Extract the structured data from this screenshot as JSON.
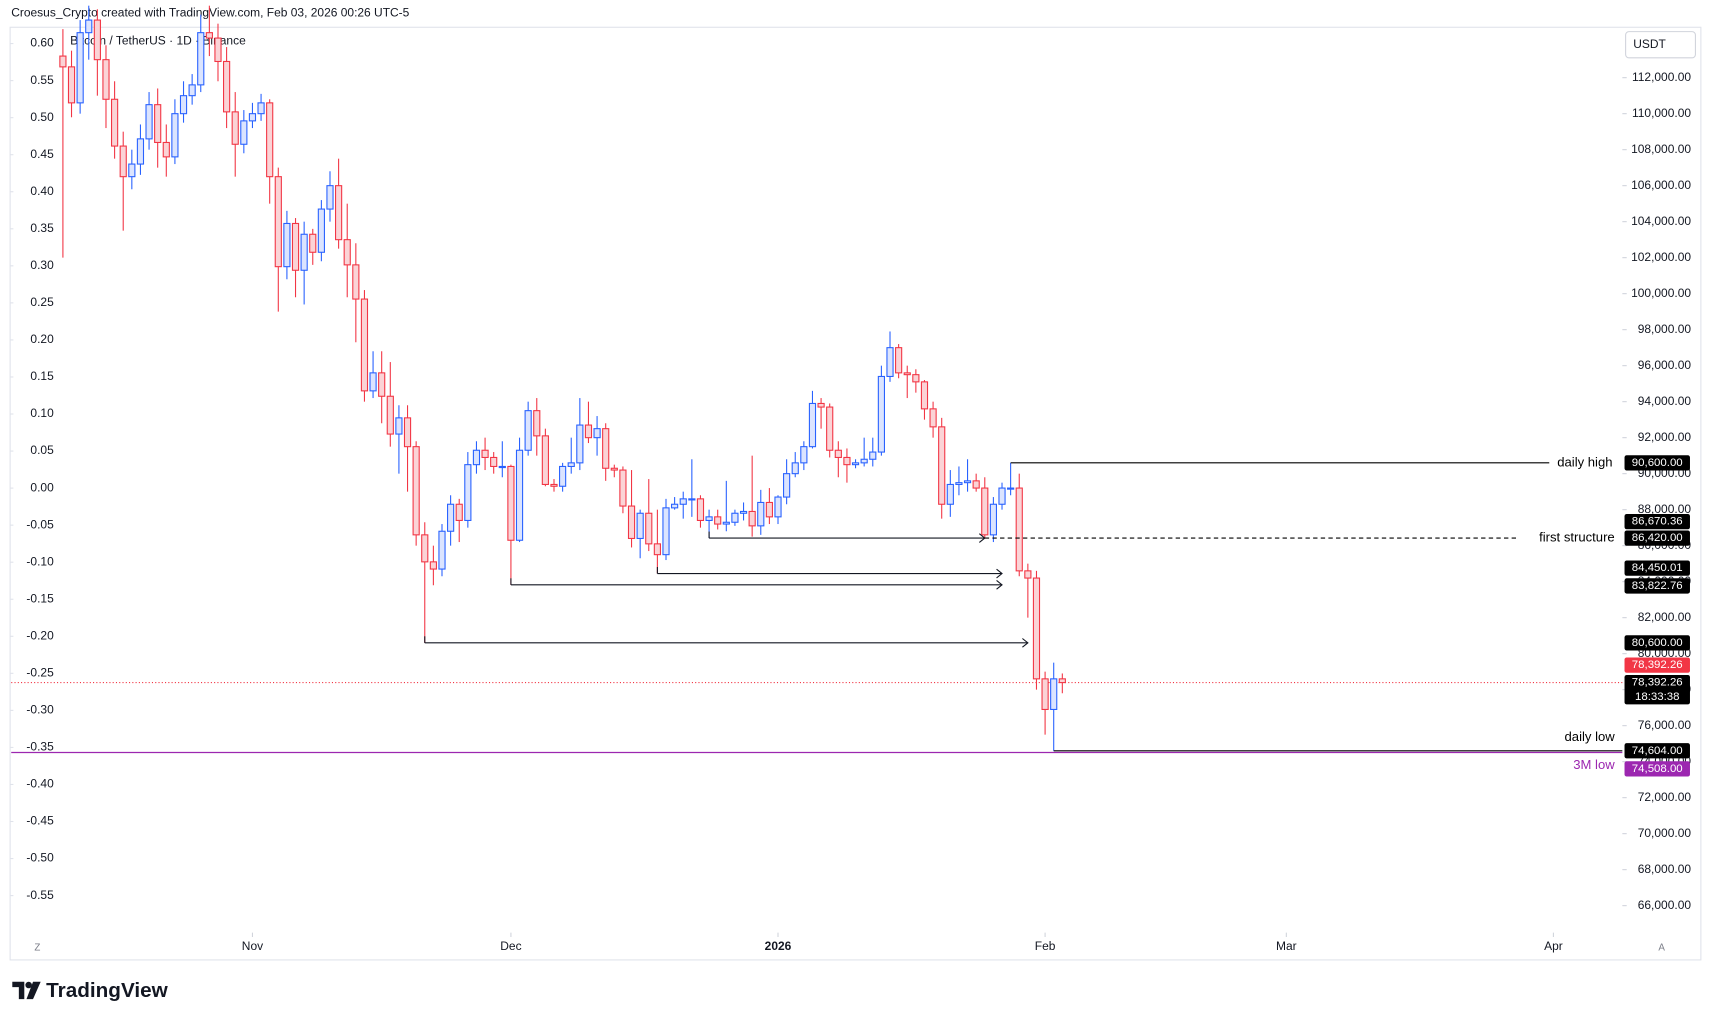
{
  "chart_data": {
    "type": "candlestick",
    "credit": "Croesus_Crypto created with TradingView.com, Feb 03, 2026 00:26 UTC-5",
    "title": "Bitcoin / TetherUS · 1D · Binance",
    "currency": "USDT",
    "brand": "TradingView",
    "corner_labels": [
      "Z",
      "A"
    ],
    "up_color": "#2962ff",
    "down_color": "#f23645",
    "xlim": [
      -6,
      181
    ],
    "xticks": [
      {
        "value": 22,
        "label": "Nov"
      },
      {
        "value": 52,
        "label": "Dec"
      },
      {
        "value": 83,
        "label": "2026"
      },
      {
        "value": 114,
        "label": "Feb"
      },
      {
        "value": 142,
        "label": "Mar"
      },
      {
        "value": 173,
        "label": "Apr"
      }
    ],
    "ylim": [
      64500,
      114800
    ],
    "yticks": [
      {
        "value": 66000,
        "label": "66,000.00"
      },
      {
        "value": 68000,
        "label": "68,000.00"
      },
      {
        "value": 70000,
        "label": "70,000.00"
      },
      {
        "value": 72000,
        "label": "72,000.00"
      },
      {
        "value": 74000,
        "label": "74,000.00"
      },
      {
        "value": 76000,
        "label": "76,000.00"
      },
      {
        "value": 78000,
        "label": "78,000.00"
      },
      {
        "value": 80000,
        "label": "80,000.00"
      },
      {
        "value": 82000,
        "label": "82,000.00"
      },
      {
        "value": 84000,
        "label": "84,000.00"
      },
      {
        "value": 86000,
        "label": "86,000.00"
      },
      {
        "value": 88000,
        "label": "88,000.00"
      },
      {
        "value": 90000,
        "label": "90,000.00"
      },
      {
        "value": 92000,
        "label": "92,000.00"
      },
      {
        "value": 94000,
        "label": "94,000.00"
      },
      {
        "value": 96000,
        "label": "96,000.00"
      },
      {
        "value": 98000,
        "label": "98,000.00"
      },
      {
        "value": 100000,
        "label": "100,000.00"
      },
      {
        "value": 102000,
        "label": "102,000.00"
      },
      {
        "value": 104000,
        "label": "104,000.00"
      },
      {
        "value": 106000,
        "label": "106,000.00"
      },
      {
        "value": 108000,
        "label": "108,000.00"
      },
      {
        "value": 110000,
        "label": "110,000.00"
      },
      {
        "value": 112000,
        "label": "112,000.00"
      }
    ],
    "y2lim": [
      -0.6,
      0.622
    ],
    "y2ticks": [
      {
        "value": 0.6,
        "label": "0.60"
      },
      {
        "value": 0.55,
        "label": "0.55"
      },
      {
        "value": 0.5,
        "label": "0.50"
      },
      {
        "value": 0.45,
        "label": "0.45"
      },
      {
        "value": 0.4,
        "label": "0.40"
      },
      {
        "value": 0.35,
        "label": "0.35"
      },
      {
        "value": 0.3,
        "label": "0.30"
      },
      {
        "value": 0.25,
        "label": "0.25"
      },
      {
        "value": 0.2,
        "label": "0.20"
      },
      {
        "value": 0.15,
        "label": "0.15"
      },
      {
        "value": 0.1,
        "label": "0.10"
      },
      {
        "value": 0.05,
        "label": "0.05"
      },
      {
        "value": 0,
        "label": "0.00"
      },
      {
        "value": -0.05,
        "label": "-0.05"
      },
      {
        "value": -0.1,
        "label": "-0.10"
      },
      {
        "value": -0.15,
        "label": "-0.15"
      },
      {
        "value": -0.2,
        "label": "-0.20"
      },
      {
        "value": -0.25,
        "label": "-0.25"
      },
      {
        "value": -0.3,
        "label": "-0.30"
      },
      {
        "value": -0.35,
        "label": "-0.35"
      },
      {
        "value": -0.4,
        "label": "-0.40"
      },
      {
        "value": -0.45,
        "label": "-0.45"
      },
      {
        "value": -0.5,
        "label": "-0.50"
      },
      {
        "value": -0.55,
        "label": "-0.55"
      }
    ],
    "open": [
      113200,
      112600,
      110600,
      114500,
      115200,
      113000,
      110800,
      108200,
      106500,
      107200,
      108600,
      110500,
      108400,
      107600,
      110000,
      111000,
      111600,
      114500,
      114200,
      112900,
      110100,
      108300,
      109600,
      110000,
      110600,
      106500,
      101500,
      103900,
      101300,
      103300,
      102300,
      104700,
      106000,
      103000,
      101600,
      99700,
      94600,
      95600,
      94300,
      92200,
      93100,
      91500,
      86600,
      85100,
      84700,
      86800,
      88300,
      87400,
      90500,
      91300,
      90900,
      90400,
      90400,
      86300,
      91300,
      93500,
      92100,
      89400,
      89300,
      90400,
      90600,
      92700,
      92000,
      92500,
      90300,
      90200,
      88200,
      86400,
      87800,
      86100,
      85500,
      88100,
      88300,
      88600,
      88600,
      87400,
      87600,
      87200,
      87300,
      87800,
      87900,
      87100,
      88400,
      87600,
      88700,
      90000,
      90600,
      91500,
      93900,
      93700,
      91300,
      90900,
      90500,
      90600,
      90800,
      91200,
      95400,
      97000,
      95600,
      95500,
      95100,
      93600,
      92600,
      88300,
      89400,
      89500,
      89600,
      89200,
      86600,
      88300,
      89200,
      89200,
      84600,
      84200,
      78600,
      76900,
      78600
    ],
    "high": [
      114700,
      113500,
      115200,
      116000,
      115800,
      113800,
      111800,
      109000,
      108000,
      109400,
      111200,
      111400,
      109400,
      110800,
      111800,
      112200,
      115500,
      116000,
      115000,
      113700,
      111200,
      110200,
      110600,
      111100,
      110800,
      107000,
      104600,
      104200,
      104000,
      103600,
      105200,
      106800,
      107500,
      105000,
      102800,
      100200,
      96800,
      96800,
      96200,
      93800,
      93800,
      91800,
      87300,
      86000,
      87200,
      88800,
      88600,
      91200,
      91800,
      92000,
      91200,
      91800,
      90500,
      92000,
      94000,
      94200,
      92500,
      89700,
      90600,
      92000,
      94200,
      94000,
      93200,
      92800,
      90500,
      90400,
      90200,
      88000,
      89700,
      88000,
      88600,
      88700,
      89000,
      90800,
      88800,
      88000,
      88000,
      89600,
      88000,
      88400,
      91000,
      89100,
      89200,
      88800,
      90800,
      91200,
      91800,
      94600,
      94200,
      93900,
      91800,
      91400,
      90800,
      92000,
      92000,
      96000,
      97900,
      97200,
      96000,
      95800,
      95200,
      94000,
      93100,
      90200,
      90400,
      90800,
      90000,
      89800,
      88700,
      89500,
      90600,
      90000,
      85000,
      84600,
      79000,
      79500,
      78900
    ],
    "low": [
      102000,
      109800,
      110000,
      113000,
      111000,
      109200,
      107500,
      103500,
      105800,
      106600,
      108000,
      107000,
      106500,
      107200,
      109500,
      110500,
      111200,
      113200,
      111800,
      109200,
      106500,
      107800,
      109200,
      109600,
      105000,
      99000,
      100800,
      99800,
      99400,
      101600,
      101800,
      104000,
      102500,
      99800,
      97300,
      94000,
      94200,
      92800,
      91500,
      90000,
      89000,
      86000,
      80600,
      83800,
      84300,
      86000,
      86200,
      87000,
      90000,
      90200,
      90000,
      89800,
      83822.76,
      86200,
      91000,
      91000,
      89300,
      89000,
      89000,
      90000,
      90200,
      91700,
      91000,
      89600,
      89800,
      87800,
      85900,
      85300,
      85700,
      84450.01,
      85200,
      88000,
      87500,
      87600,
      87000,
      86420,
      86900,
      86800,
      87100,
      87400,
      86500,
      86600,
      87200,
      87200,
      88300,
      89800,
      90200,
      91400,
      92500,
      90900,
      89800,
      89500,
      90300,
      90400,
      90400,
      91000,
      95100,
      95300,
      94200,
      94500,
      93000,
      92000,
      87500,
      87600,
      88800,
      89000,
      89000,
      86400,
      86200,
      88000,
      88800,
      84300,
      82000,
      78000,
      75500,
      74604,
      77800
    ],
    "close": [
      112600,
      110600,
      114500,
      115200,
      113000,
      110800,
      108200,
      106500,
      107200,
      108600,
      110500,
      108400,
      107600,
      110000,
      111000,
      111600,
      114500,
      114200,
      112900,
      110100,
      108300,
      109600,
      110000,
      110600,
      106500,
      101500,
      103900,
      101300,
      103300,
      102300,
      104700,
      106000,
      103000,
      101600,
      99700,
      94600,
      95600,
      94300,
      92200,
      93100,
      91500,
      86600,
      85100,
      84700,
      86800,
      88300,
      87400,
      90500,
      91300,
      90900,
      90400,
      90400,
      86300,
      91300,
      93500,
      92100,
      89400,
      89300,
      90400,
      90600,
      92700,
      92000,
      92500,
      90300,
      90200,
      88200,
      86400,
      87800,
      86100,
      85500,
      88100,
      88300,
      88600,
      88600,
      87400,
      87600,
      87200,
      87300,
      87800,
      87900,
      87100,
      88400,
      87600,
      88700,
      90000,
      90600,
      91500,
      93900,
      93700,
      91300,
      90900,
      90500,
      90600,
      90800,
      91200,
      95400,
      97000,
      95600,
      95500,
      95100,
      93600,
      92600,
      88300,
      89400,
      89500,
      89600,
      89200,
      86600,
      88300,
      89200,
      89200,
      84600,
      84200,
      78600,
      76900,
      78600,
      78392.26
    ],
    "levels": [
      {
        "name": "daily high",
        "value": 90600,
        "value_label": "90,600.00",
        "from": 110,
        "color": "#000000",
        "dashed": false
      },
      {
        "name": "first structure",
        "value": 86420,
        "value_label": "86,420.00",
        "from": 107,
        "color": "#000000",
        "dashed": true
      },
      {
        "name": "daily low",
        "value": 74604,
        "value_label": "74,604.00",
        "from": 115,
        "color": "#000000",
        "dashed": false
      },
      {
        "name": "3M low",
        "value": 74508,
        "value_label": "74,508.00",
        "from": -6,
        "color": "#9c27b0",
        "dashed": false
      }
    ],
    "arrows": [
      {
        "value": 86420,
        "from": 75,
        "to": 107
      },
      {
        "value": 84450.01,
        "from": 69,
        "to": 109
      },
      {
        "value": 83822.76,
        "from": 52,
        "to": 109
      },
      {
        "value": 80600,
        "from": 42,
        "to": 112
      }
    ],
    "price_tags": [
      {
        "value": 86670.36,
        "label": "86,670.36"
      },
      {
        "value": 84450.01,
        "label": "84,450.01"
      },
      {
        "value": 83822.76,
        "label": "83,822.76"
      },
      {
        "value": 80600,
        "label": "80,600.00"
      }
    ],
    "last_price": {
      "value": 78392.26,
      "label": "78,392.26",
      "color": "#f23645"
    },
    "countdown": "18:33:38"
  }
}
